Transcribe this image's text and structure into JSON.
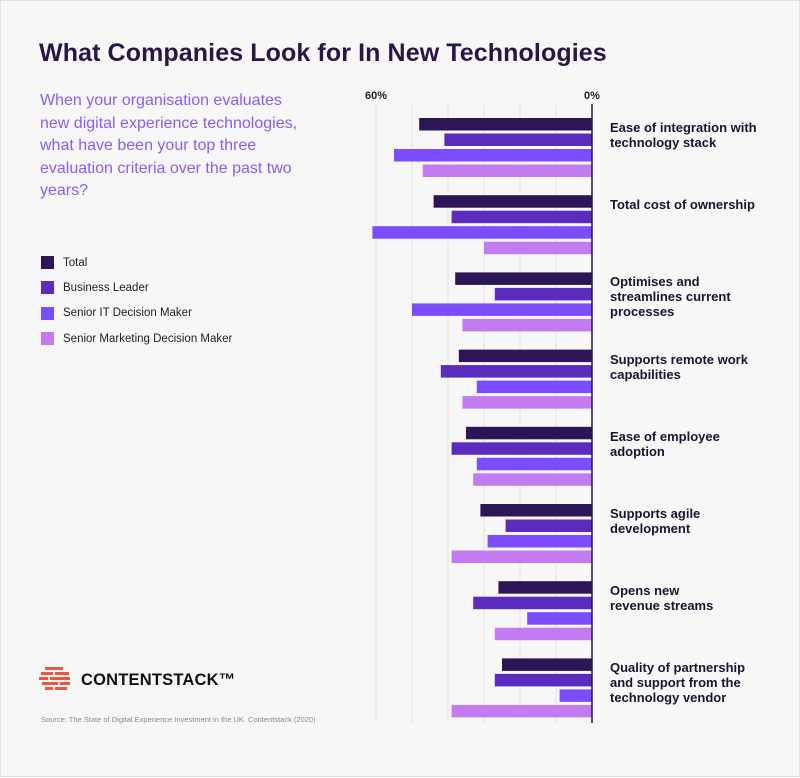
{
  "title": "What Companies Look for In New Technologies",
  "question": "When your organisation evaluates new digital experience technologies, what have been your top three evaluation criteria over the past two years?",
  "legend": [
    {
      "label": "Total",
      "color": "#2d1657"
    },
    {
      "label": "Business Leader",
      "color": "#5b2bbd"
    },
    {
      "label": "Senior IT Decision Maker",
      "color": "#7c4dff"
    },
    {
      "label": "Senior Marketing Decision Maker",
      "color": "#c37bf2"
    }
  ],
  "brand": {
    "name": "CONTENTSTACK™",
    "logo_color": "#f0553d",
    "icon": "contentstack-logo-icon"
  },
  "source": "Source: The State of Digital Experience Investment in the UK. Contentstack (2020)",
  "chart_data": {
    "type": "bar",
    "orientation": "horizontal",
    "direction": "right-to-left",
    "title": "What Companies Look for In New Technologies",
    "xlim": [
      0,
      61
    ],
    "x_ticks": [
      "60%",
      "0%"
    ],
    "tick_values": [
      60,
      0
    ],
    "grid": true,
    "legend_position": "left",
    "categories": [
      "Ease of integration with technology stack",
      "Total cost of ownership",
      "Optimises and streamlines current processes",
      "Supports remote work capabilities",
      "Ease of employee adoption",
      "Supports agile development",
      "Opens new revenue streams",
      "Quality of partnership and support from the technology vendor"
    ],
    "series": [
      {
        "name": "Total",
        "color": "#2d1657",
        "values": [
          48,
          44,
          38,
          37,
          35,
          31,
          26,
          25
        ]
      },
      {
        "name": "Business Leader",
        "color": "#5b2bbd",
        "values": [
          41,
          39,
          27,
          42,
          39,
          24,
          33,
          27
        ]
      },
      {
        "name": "Senior IT Decision Maker",
        "color": "#7c4dff",
        "values": [
          55,
          61,
          50,
          32,
          32,
          29,
          18,
          9
        ]
      },
      {
        "name": "Senior Marketing Decision Maker",
        "color": "#c37bf2",
        "values": [
          47,
          30,
          36,
          36,
          33,
          39,
          27,
          39
        ]
      }
    ]
  }
}
